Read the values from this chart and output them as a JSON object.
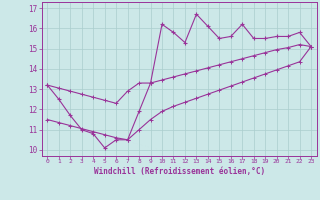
{
  "x": [
    0,
    1,
    2,
    3,
    4,
    5,
    6,
    7,
    8,
    9,
    10,
    11,
    12,
    13,
    14,
    15,
    16,
    17,
    18,
    19,
    20,
    21,
    22,
    23
  ],
  "y_main": [
    13.2,
    12.5,
    11.7,
    11.0,
    10.8,
    10.1,
    10.5,
    10.5,
    11.9,
    13.3,
    16.2,
    15.8,
    15.3,
    16.7,
    16.1,
    15.5,
    15.6,
    16.2,
    15.5,
    15.5,
    15.6,
    15.6,
    15.8,
    15.1
  ],
  "y_upper": [
    13.2,
    13.05,
    12.9,
    12.75,
    12.6,
    12.45,
    12.3,
    12.9,
    13.3,
    13.3,
    13.45,
    13.6,
    13.75,
    13.9,
    14.05,
    14.2,
    14.35,
    14.5,
    14.65,
    14.8,
    14.95,
    15.05,
    15.2,
    15.1
  ],
  "y_lower": [
    11.5,
    11.35,
    11.2,
    11.05,
    10.9,
    10.75,
    10.6,
    10.5,
    11.0,
    11.5,
    11.9,
    12.15,
    12.35,
    12.55,
    12.75,
    12.95,
    13.15,
    13.35,
    13.55,
    13.75,
    13.95,
    14.15,
    14.35,
    15.1
  ],
  "line_color": "#993399",
  "bg_color": "#cce8e8",
  "grid_color": "#aacece",
  "xlabel": "Windchill (Refroidissement éolien,°C)",
  "ylim": [
    9.7,
    17.3
  ],
  "xlim": [
    -0.5,
    23.5
  ],
  "yticks": [
    10,
    11,
    12,
    13,
    14,
    15,
    16,
    17
  ],
  "xticks": [
    0,
    1,
    2,
    3,
    4,
    5,
    6,
    7,
    8,
    9,
    10,
    11,
    12,
    13,
    14,
    15,
    16,
    17,
    18,
    19,
    20,
    21,
    22,
    23
  ]
}
